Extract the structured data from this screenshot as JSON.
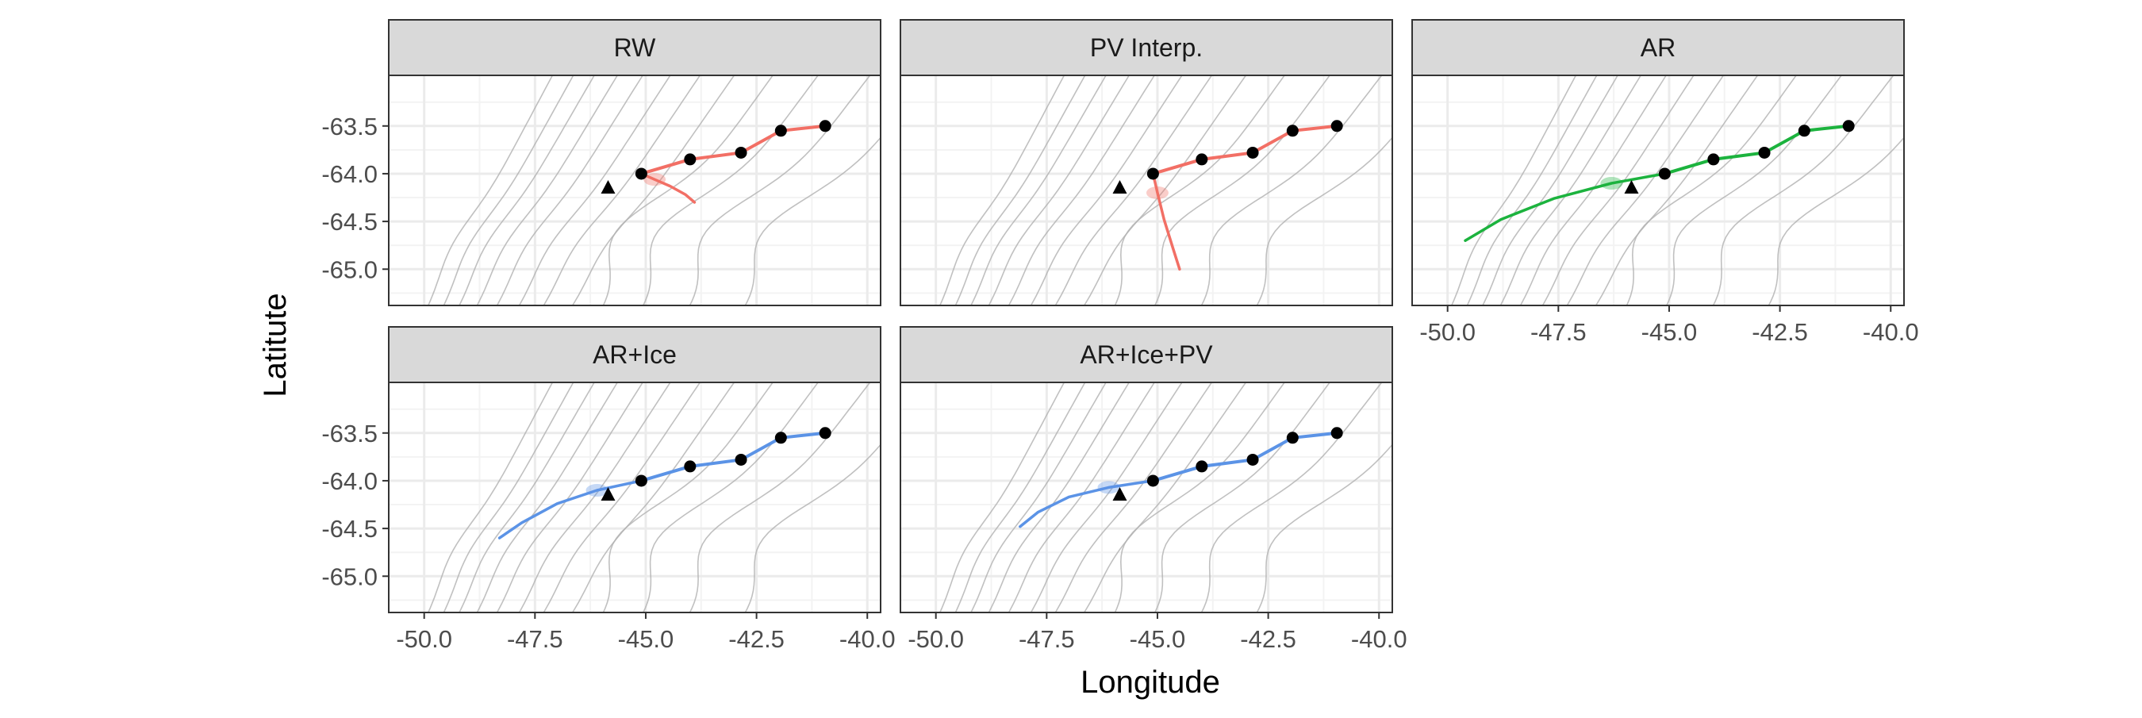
{
  "chart_data": {
    "type": "line",
    "title": "",
    "xlabel": "Longitude",
    "ylabel": "Latitute",
    "xlim": [
      -50.8,
      -39.7
    ],
    "ylim": [
      -65.38,
      -62.97
    ],
    "x_ticks": [
      -50.0,
      -47.5,
      -45.0,
      -42.5,
      -40.0
    ],
    "x_tick_labels": [
      "-50.0",
      "-47.5",
      "-45.0",
      "-42.5",
      "-40.0"
    ],
    "y_ticks": [
      -63.5,
      -64.0,
      -64.5,
      -65.0
    ],
    "y_tick_labels": [
      "-63.5",
      "-64.0",
      "-64.5",
      "-65.0"
    ],
    "grid": true,
    "legend": "none",
    "observed_points": {
      "name": "observed locations",
      "x": [
        -45.1,
        -44.0,
        -42.85,
        -41.95,
        -40.95
      ],
      "y": [
        -64.0,
        -63.85,
        -63.78,
        -63.55,
        -63.5
      ]
    },
    "target_point": {
      "name": "true location",
      "x": -45.85,
      "y": -64.15
    },
    "colors": {
      "RW": "#F26F65",
      "PV Interp.": "#F26F65",
      "AR": "#1CB33E",
      "AR+Ice": "#5B93E6",
      "AR+Ice+PV": "#5B93E6",
      "contour": "#b0b0b0",
      "panel_strip": "#d9d9d9",
      "grid": "#ebebeb"
    },
    "panels": [
      {
        "label": "RW",
        "prediction": {
          "x": [
            -45.1,
            -44.8,
            -44.45,
            -44.1,
            -43.9
          ],
          "y": [
            -64.0,
            -64.06,
            -64.13,
            -64.22,
            -64.3
          ]
        }
      },
      {
        "label": "PV Interp.",
        "prediction": {
          "x": [
            -45.1,
            -45.0,
            -44.85,
            -44.65,
            -44.5
          ],
          "y": [
            -64.0,
            -64.2,
            -64.48,
            -64.78,
            -65.0
          ]
        }
      },
      {
        "label": "AR",
        "prediction": {
          "x": [
            -45.1,
            -46.3,
            -47.6,
            -48.8,
            -49.6
          ],
          "y": [
            -64.0,
            -64.1,
            -64.26,
            -64.48,
            -64.7
          ]
        }
      },
      {
        "label": "AR+Ice",
        "prediction": {
          "x": [
            -45.1,
            -46.1,
            -47.0,
            -47.8,
            -48.3
          ],
          "y": [
            -64.0,
            -64.1,
            -64.24,
            -64.44,
            -64.6
          ]
        }
      },
      {
        "label": "AR+Ice+PV",
        "prediction": {
          "x": [
            -45.1,
            -46.1,
            -47.0,
            -47.7,
            -48.1
          ],
          "y": [
            -64.0,
            -64.07,
            -64.17,
            -64.33,
            -64.48
          ]
        }
      }
    ]
  }
}
